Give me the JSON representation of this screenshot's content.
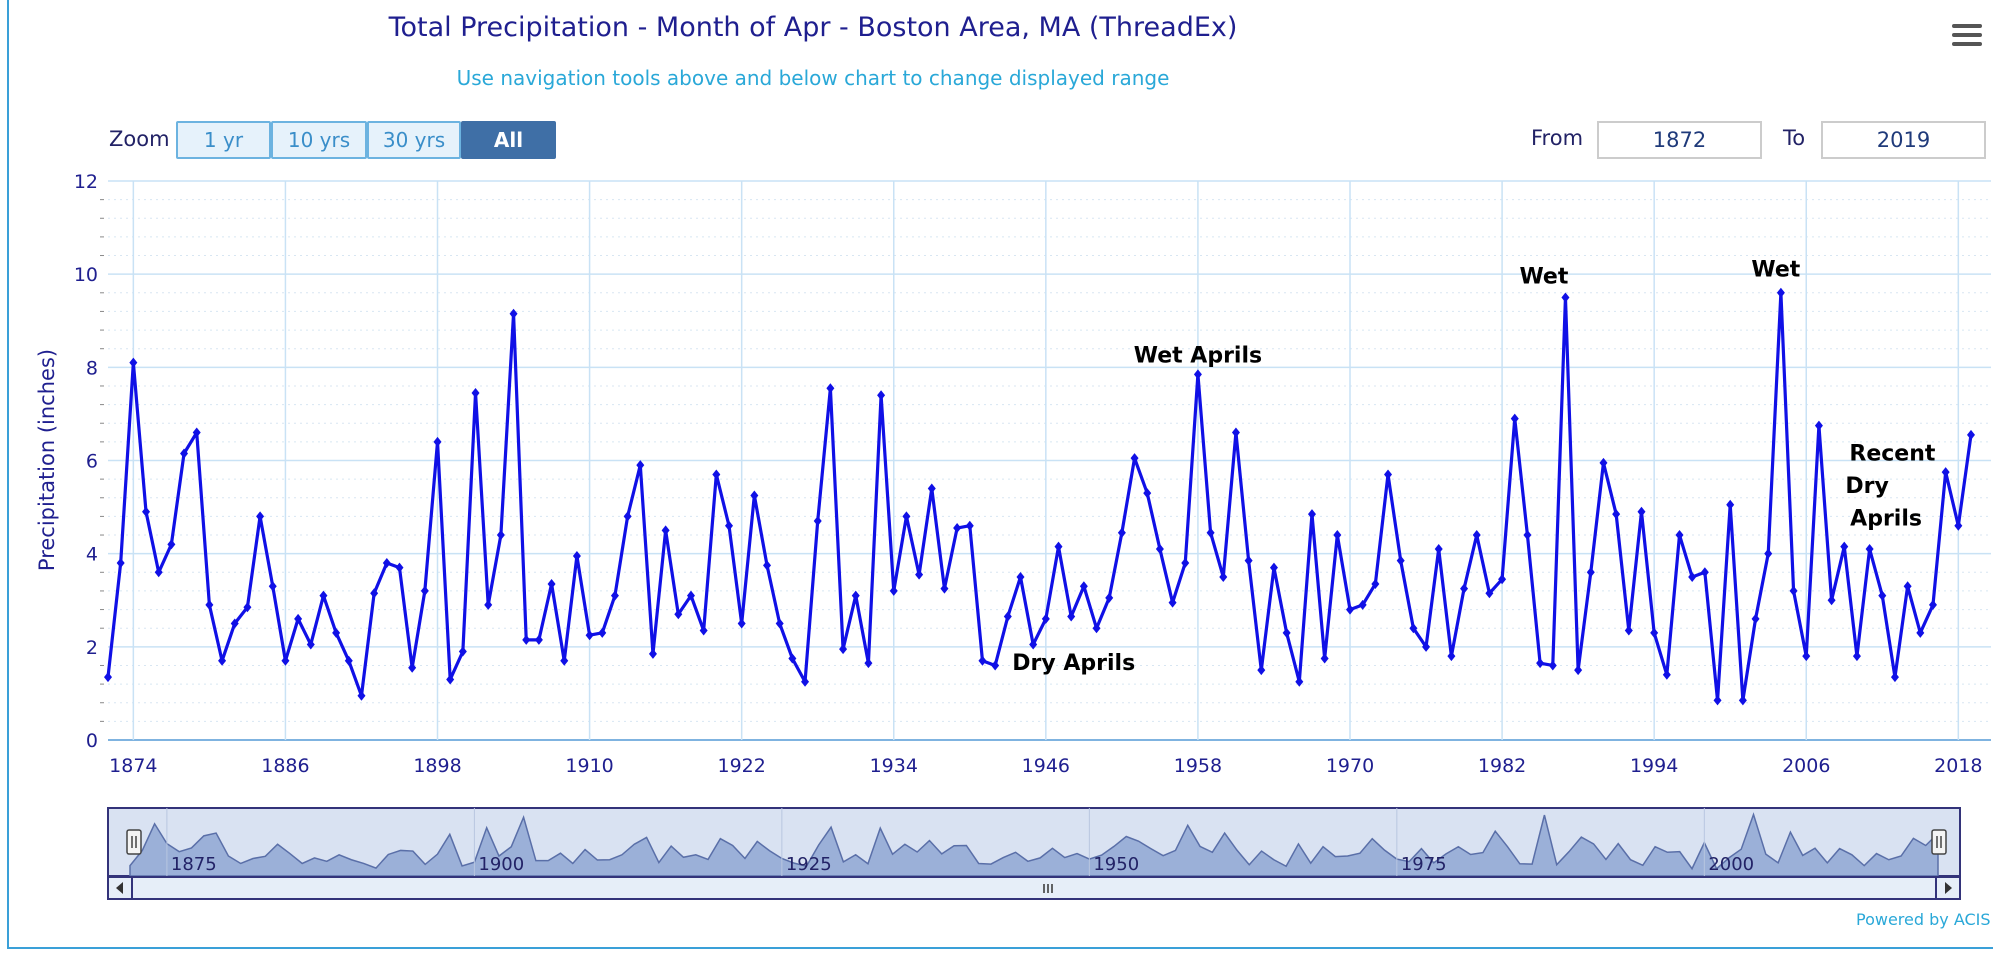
{
  "title": "Total Precipitation - Month of Apr - Boston Area, MA (ThreadEx)",
  "subtitle": "Use navigation tools above and below chart to change displayed range",
  "zoom": {
    "label": "Zoom",
    "buttons": [
      "1 yr",
      "10 yrs",
      "30 yrs",
      "All"
    ],
    "active": "All"
  },
  "range": {
    "from_label": "From",
    "from_value": "1872",
    "to_label": "To",
    "to_value": "2019"
  },
  "powered_by": "Powered by ACIS",
  "colors": {
    "series": "#1010e6",
    "grid": "#c9e2f5",
    "axis_text": "#1f1f8f",
    "navigator_fill": "#9bb0d8"
  },
  "chart_data": {
    "type": "line",
    "title": "Total Precipitation - Month of Apr - Boston Area, MA (ThreadEx)",
    "ylabel": "Precipitation (inches)",
    "xlabel": "",
    "ylim": [
      0,
      12
    ],
    "xlim": [
      1872,
      2019
    ],
    "yticks": [
      0,
      2,
      4,
      6,
      8,
      10,
      12
    ],
    "xticks": [
      1874,
      1886,
      1898,
      1910,
      1922,
      1934,
      1946,
      1958,
      1970,
      1982,
      1994,
      2006,
      2018
    ],
    "grid": true,
    "x_start": 1872,
    "values": [
      1.35,
      3.8,
      8.1,
      4.9,
      3.6,
      4.2,
      6.15,
      6.6,
      2.9,
      1.7,
      2.5,
      2.85,
      4.8,
      3.3,
      1.7,
      2.6,
      2.05,
      3.1,
      2.3,
      1.7,
      0.95,
      3.15,
      3.8,
      3.7,
      1.55,
      3.2,
      6.4,
      1.3,
      1.9,
      7.45,
      2.9,
      4.4,
      9.15,
      2.15,
      2.15,
      3.35,
      1.7,
      3.95,
      2.25,
      2.3,
      3.1,
      4.8,
      5.9,
      1.85,
      4.5,
      2.7,
      3.1,
      2.35,
      5.7,
      4.6,
      2.5,
      5.25,
      3.75,
      2.5,
      1.75,
      1.25,
      4.7,
      7.55,
      1.95,
      3.1,
      1.65,
      7.4,
      3.2,
      4.8,
      3.55,
      5.4,
      3.25,
      4.55,
      4.6,
      1.7,
      1.6,
      2.65,
      3.5,
      2.05,
      2.6,
      4.15,
      2.65,
      3.3,
      2.4,
      3.05,
      4.45,
      6.05,
      5.3,
      4.1,
      2.95,
      3.8,
      7.85,
      4.45,
      3.5,
      6.6,
      3.85,
      1.5,
      3.7,
      2.3,
      1.25,
      4.85,
      1.75,
      4.4,
      2.8,
      2.9,
      3.35,
      5.7,
      3.85,
      2.4,
      2.0,
      4.1,
      1.8,
      3.25,
      4.4,
      3.15,
      3.45,
      6.9,
      4.4,
      1.65,
      1.6,
      9.5,
      1.5,
      3.6,
      5.95,
      4.85,
      2.35,
      4.9,
      2.3,
      1.4,
      4.4,
      3.5,
      3.6,
      0.85,
      5.05,
      0.85,
      2.6,
      4.0,
      9.6,
      3.2,
      1.8,
      6.75,
      3.0,
      4.15,
      1.8,
      4.1,
      3.1,
      1.35,
      3.3,
      2.3,
      2.9,
      5.75,
      4.6,
      6.55
    ],
    "annotations": [
      {
        "text": "Dry Aprils",
        "x": 1948.2,
        "y": 1.5
      },
      {
        "text": "Wet Aprils",
        "x": 1958,
        "y": 8.1
      },
      {
        "text": "Wet",
        "x": 1985.3,
        "y": 9.8
      },
      {
        "text": "Wet",
        "x": 2003.6,
        "y": 9.95
      },
      {
        "text": "Recent",
        "x": 2012.8,
        "y": 6.0
      },
      {
        "text": "Dry",
        "x": 2010.8,
        "y": 5.3
      },
      {
        "text": "Aprils",
        "x": 2012.3,
        "y": 4.6
      }
    ],
    "navigator": {
      "labels": [
        "1875",
        "1900",
        "1925",
        "1950",
        "1975",
        "2000"
      ],
      "label_years": [
        1875,
        1900,
        1925,
        1950,
        1975,
        2000
      ]
    }
  }
}
